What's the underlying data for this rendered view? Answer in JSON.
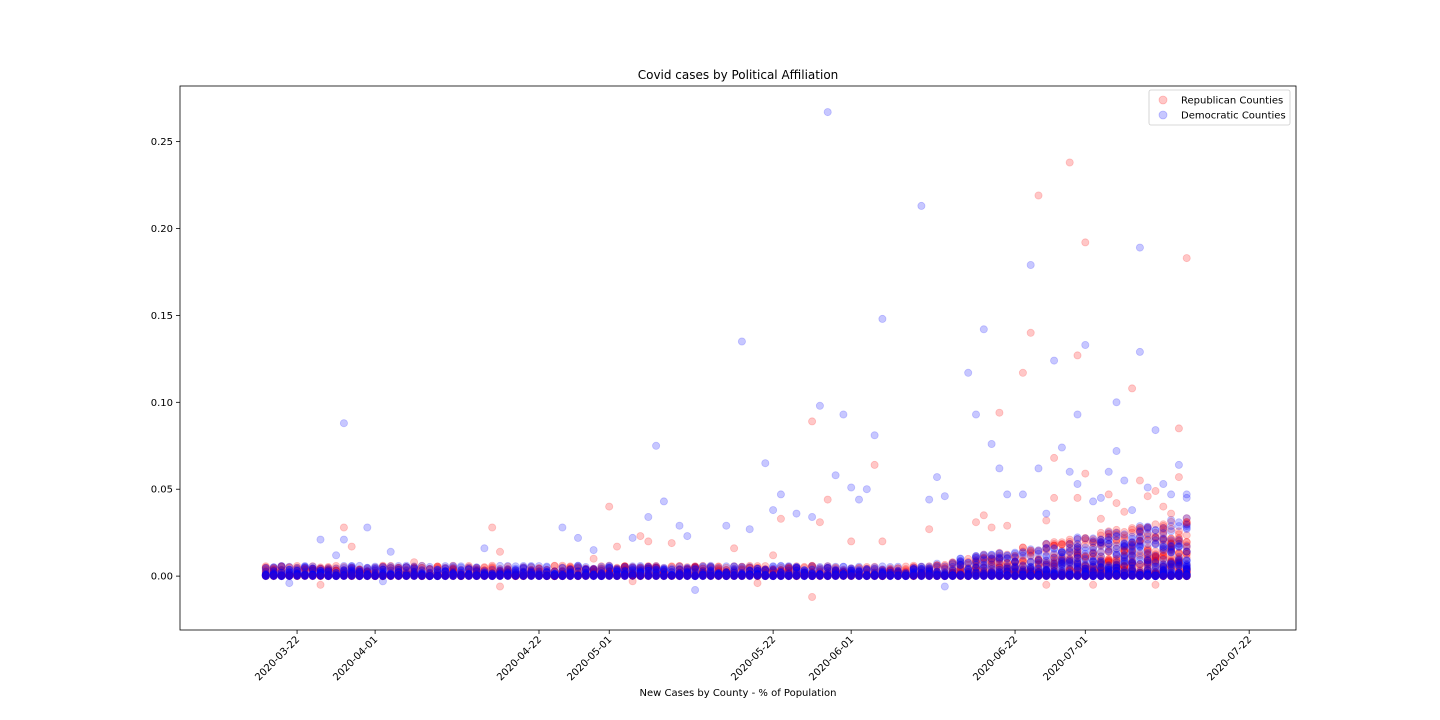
{
  "chart_data": {
    "type": "scatter",
    "title": "Covid cases by Political Affiliation",
    "xlabel": "New Cases by County - % of Population",
    "ylabel": "",
    "x_type": "date",
    "xlim": [
      "2020-03-07",
      "2020-07-28"
    ],
    "ylim": [
      -0.031,
      0.282
    ],
    "x_ticks": [
      "2020-03-22",
      "2020-04-01",
      "2020-04-22",
      "2020-05-01",
      "2020-05-22",
      "2020-06-01",
      "2020-06-22",
      "2020-07-01",
      "2020-07-22"
    ],
    "y_ticks": [
      0.0,
      0.05,
      0.1,
      0.15,
      0.2,
      0.25
    ],
    "y_tick_labels": [
      "0.00",
      "0.05",
      "0.10",
      "0.15",
      "0.20",
      "0.25"
    ],
    "grid": false,
    "legend_position": "top-right",
    "date_range": [
      "2020-03-18",
      "2020-07-14"
    ],
    "series": [
      {
        "name": "Republican Counties",
        "color": "#ff0000",
        "opacity": 0.22,
        "points": [
          [
            "2020-03-25",
            -0.005
          ],
          [
            "2020-03-28",
            0.028
          ],
          [
            "2020-03-29",
            0.017
          ],
          [
            "2020-04-06",
            0.008
          ],
          [
            "2020-04-16",
            0.028
          ],
          [
            "2020-04-17",
            -0.006
          ],
          [
            "2020-04-17",
            0.014
          ],
          [
            "2020-04-29",
            0.01
          ],
          [
            "2020-05-01",
            0.04
          ],
          [
            "2020-05-02",
            0.017
          ],
          [
            "2020-05-04",
            -0.003
          ],
          [
            "2020-05-05",
            0.023
          ],
          [
            "2020-05-06",
            0.02
          ],
          [
            "2020-05-09",
            0.019
          ],
          [
            "2020-05-17",
            0.016
          ],
          [
            "2020-05-20",
            -0.004
          ],
          [
            "2020-05-22",
            0.012
          ],
          [
            "2020-05-23",
            0.033
          ],
          [
            "2020-05-27",
            -0.012
          ],
          [
            "2020-05-27",
            0.089
          ],
          [
            "2020-05-28",
            0.031
          ],
          [
            "2020-05-29",
            0.044
          ],
          [
            "2020-06-01",
            0.02
          ],
          [
            "2020-06-04",
            0.064
          ],
          [
            "2020-06-05",
            0.02
          ],
          [
            "2020-06-11",
            0.027
          ],
          [
            "2020-06-17",
            0.031
          ],
          [
            "2020-06-18",
            0.035
          ],
          [
            "2020-06-19",
            0.028
          ],
          [
            "2020-06-20",
            0.094
          ],
          [
            "2020-06-21",
            0.029
          ],
          [
            "2020-06-23",
            0.117
          ],
          [
            "2020-06-24",
            0.14
          ],
          [
            "2020-06-25",
            0.219
          ],
          [
            "2020-06-26",
            0.032
          ],
          [
            "2020-06-26",
            -0.005
          ],
          [
            "2020-06-27",
            0.045
          ],
          [
            "2020-06-27",
            0.068
          ],
          [
            "2020-06-29",
            0.238
          ],
          [
            "2020-06-30",
            0.127
          ],
          [
            "2020-06-30",
            0.045
          ],
          [
            "2020-07-01",
            0.192
          ],
          [
            "2020-07-01",
            0.059
          ],
          [
            "2020-07-02",
            -0.005
          ],
          [
            "2020-07-03",
            0.033
          ],
          [
            "2020-07-04",
            0.047
          ],
          [
            "2020-07-05",
            0.042
          ],
          [
            "2020-07-06",
            0.037
          ],
          [
            "2020-07-07",
            0.108
          ],
          [
            "2020-07-08",
            0.055
          ],
          [
            "2020-07-09",
            0.046
          ],
          [
            "2020-07-10",
            0.049
          ],
          [
            "2020-07-10",
            -0.005
          ],
          [
            "2020-07-11",
            0.04
          ],
          [
            "2020-07-12",
            0.036
          ],
          [
            "2020-07-13",
            0.085
          ],
          [
            "2020-07-13",
            0.057
          ],
          [
            "2020-07-14",
            0.183
          ],
          [
            "2020-07-14",
            0.031
          ]
        ]
      },
      {
        "name": "Democratic Counties",
        "color": "#0000ff",
        "opacity": 0.22,
        "points": [
          [
            "2020-03-21",
            -0.004
          ],
          [
            "2020-03-25",
            0.021
          ],
          [
            "2020-03-27",
            0.012
          ],
          [
            "2020-03-28",
            0.088
          ],
          [
            "2020-03-28",
            0.021
          ],
          [
            "2020-03-31",
            0.028
          ],
          [
            "2020-04-02",
            -0.003
          ],
          [
            "2020-04-03",
            0.014
          ],
          [
            "2020-04-15",
            0.016
          ],
          [
            "2020-04-25",
            0.028
          ],
          [
            "2020-04-27",
            0.022
          ],
          [
            "2020-04-29",
            0.015
          ],
          [
            "2020-05-04",
            0.022
          ],
          [
            "2020-05-06",
            0.034
          ],
          [
            "2020-05-07",
            0.075
          ],
          [
            "2020-05-08",
            0.043
          ],
          [
            "2020-05-10",
            0.029
          ],
          [
            "2020-05-11",
            0.023
          ],
          [
            "2020-05-12",
            -0.008
          ],
          [
            "2020-05-16",
            0.029
          ],
          [
            "2020-05-18",
            0.135
          ],
          [
            "2020-05-19",
            0.027
          ],
          [
            "2020-05-21",
            0.065
          ],
          [
            "2020-05-22",
            0.038
          ],
          [
            "2020-05-23",
            0.047
          ],
          [
            "2020-05-25",
            0.036
          ],
          [
            "2020-05-27",
            0.034
          ],
          [
            "2020-05-28",
            0.098
          ],
          [
            "2020-05-29",
            0.267
          ],
          [
            "2020-05-30",
            0.058
          ],
          [
            "2020-05-31",
            0.093
          ],
          [
            "2020-06-01",
            0.051
          ],
          [
            "2020-06-02",
            0.044
          ],
          [
            "2020-06-03",
            0.05
          ],
          [
            "2020-06-04",
            0.081
          ],
          [
            "2020-06-05",
            0.148
          ],
          [
            "2020-06-10",
            0.213
          ],
          [
            "2020-06-11",
            0.044
          ],
          [
            "2020-06-12",
            0.057
          ],
          [
            "2020-06-13",
            -0.006
          ],
          [
            "2020-06-13",
            0.046
          ],
          [
            "2020-06-16",
            0.117
          ],
          [
            "2020-06-17",
            0.093
          ],
          [
            "2020-06-18",
            0.142
          ],
          [
            "2020-06-19",
            0.076
          ],
          [
            "2020-06-20",
            0.062
          ],
          [
            "2020-06-21",
            0.047
          ],
          [
            "2020-06-23",
            0.047
          ],
          [
            "2020-06-24",
            0.179
          ],
          [
            "2020-06-25",
            0.062
          ],
          [
            "2020-06-26",
            0.036
          ],
          [
            "2020-06-27",
            0.124
          ],
          [
            "2020-06-28",
            0.074
          ],
          [
            "2020-06-29",
            0.06
          ],
          [
            "2020-06-30",
            0.093
          ],
          [
            "2020-06-30",
            0.053
          ],
          [
            "2020-07-01",
            0.133
          ],
          [
            "2020-07-02",
            0.043
          ],
          [
            "2020-07-03",
            0.045
          ],
          [
            "2020-07-04",
            0.06
          ],
          [
            "2020-07-05",
            0.1
          ],
          [
            "2020-07-05",
            0.072
          ],
          [
            "2020-07-06",
            0.055
          ],
          [
            "2020-07-07",
            0.038
          ],
          [
            "2020-07-08",
            0.189
          ],
          [
            "2020-07-08",
            0.129
          ],
          [
            "2020-07-09",
            0.051
          ],
          [
            "2020-07-10",
            0.084
          ],
          [
            "2020-07-11",
            0.053
          ],
          [
            "2020-07-12",
            0.047
          ],
          [
            "2020-07-13",
            0.064
          ],
          [
            "2020-07-14",
            0.045
          ],
          [
            "2020-07-14",
            0.047
          ]
        ]
      }
    ]
  }
}
